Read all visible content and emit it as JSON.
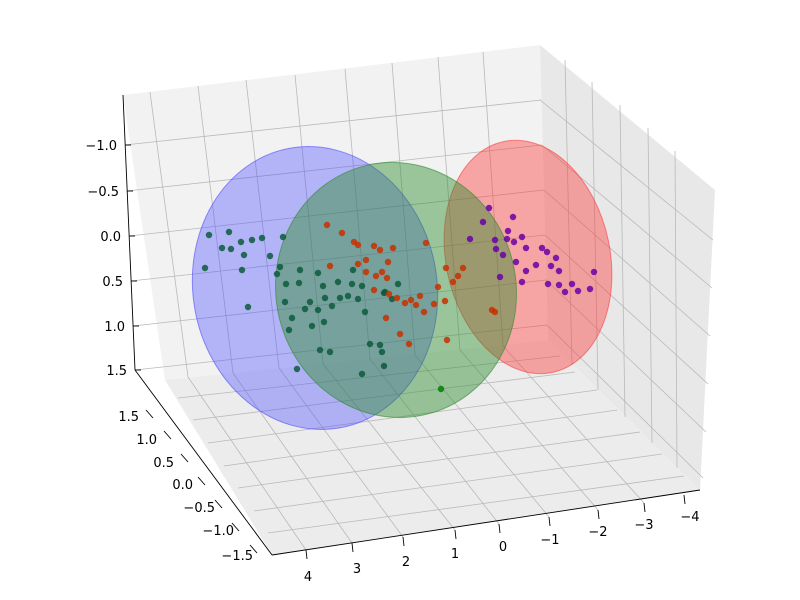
{
  "chart_data": {
    "type": "scatter",
    "projection": "3d",
    "title": "",
    "x_ticks": [
      "−4",
      "−3",
      "−2",
      "−1",
      "0",
      "1",
      "2",
      "3",
      "4"
    ],
    "y_ticks": [
      "−1.5",
      "−1.0",
      "−0.5",
      "0.0",
      "0.5",
      "1.0",
      "1.5"
    ],
    "z_ticks": [
      "−1.0",
      "−0.5",
      "0.0",
      "0.5",
      "1.0",
      "1.5"
    ],
    "colors": {
      "pane": "#f2f2f2",
      "grid": "#b9b9b9",
      "axis": "#000000"
    },
    "series": [
      {
        "color": "#0000ff",
        "point_color": "#0a5b3c",
        "ellipsoid_opacity": 0.38,
        "points": []
      },
      {
        "color": "#2e8b2e",
        "point_color": "#008000",
        "ellipsoid_opacity": 0.45,
        "points": []
      },
      {
        "color": "#ff3030",
        "point_color": "#c83000",
        "ellipsoid_opacity": 0.4,
        "points": []
      },
      {
        "color": "#800080",
        "point_color": "#6a00a8",
        "ellipsoid_opacity": 0.85,
        "points": []
      }
    ]
  }
}
